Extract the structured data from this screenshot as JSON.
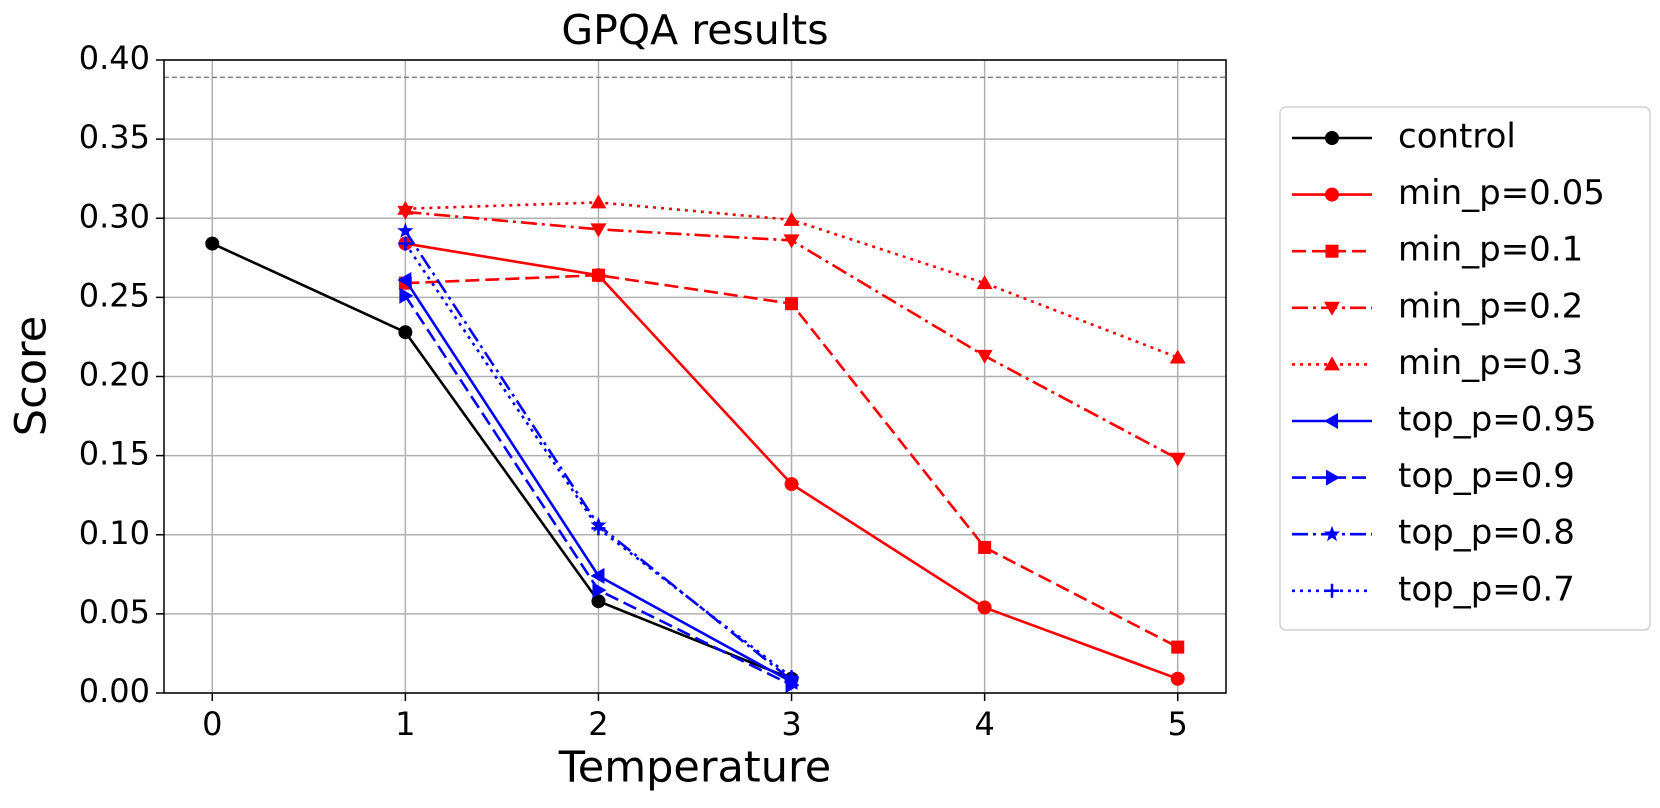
{
  "chart_data": {
    "type": "line",
    "title": "GPQA results",
    "x_label": "Temperature",
    "y_label": "Score",
    "xlim": [
      -0.25,
      5.25
    ],
    "ylim": [
      0,
      0.4
    ],
    "xticks": [
      0,
      1,
      2,
      3,
      4,
      5
    ],
    "yticks": [
      {
        "value": 0,
        "label": "0.00"
      },
      {
        "value": 0.05,
        "label": "0.05"
      },
      {
        "value": 0.1,
        "label": "0.10"
      },
      {
        "value": 0.15,
        "label": "0.15"
      },
      {
        "value": 0.2,
        "label": "0.20"
      },
      {
        "value": 0.25,
        "label": "0.25"
      },
      {
        "value": 0.3,
        "label": "0.30"
      },
      {
        "value": 0.35,
        "label": "0.35"
      },
      {
        "value": 0.4,
        "label": "0.40"
      }
    ],
    "grid": true,
    "legend": "outside-right",
    "reference_line": {
      "y": 0.389,
      "color": "#808080"
    },
    "series": [
      {
        "name": "control",
        "color": "#000000",
        "marker": "circle",
        "linestyle": "solid",
        "x": [
          0,
          1,
          2,
          3
        ],
        "values": [
          0.284,
          0.228,
          0.058,
          0.009
        ]
      },
      {
        "name": "min_p=0.05",
        "color": "#ff0000",
        "marker": "circle",
        "linestyle": "solid",
        "x": [
          1,
          2,
          3,
          4,
          5
        ],
        "values": [
          0.284,
          0.264,
          0.132,
          0.054,
          0.009
        ]
      },
      {
        "name": "min_p=0.1",
        "color": "#ff0000",
        "marker": "square",
        "linestyle": "dashed",
        "x": [
          1,
          2,
          3,
          4,
          5
        ],
        "values": [
          0.259,
          0.264,
          0.246,
          0.092,
          0.029
        ]
      },
      {
        "name": "min_p=0.2",
        "color": "#ff0000",
        "marker": "triangle-down",
        "linestyle": "dashdot",
        "x": [
          1,
          2,
          3,
          4,
          5
        ],
        "values": [
          0.304,
          0.293,
          0.286,
          0.213,
          0.148
        ]
      },
      {
        "name": "min_p=0.3",
        "color": "#ff0000",
        "marker": "triangle-up",
        "linestyle": "dotted",
        "x": [
          1,
          2,
          3,
          4,
          5
        ],
        "values": [
          0.306,
          0.31,
          0.299,
          0.259,
          0.212
        ]
      },
      {
        "name": "top_p=0.95",
        "color": "#0000ff",
        "marker": "triangle-left",
        "linestyle": "solid",
        "x": [
          1,
          2,
          3
        ],
        "values": [
          0.261,
          0.074,
          0.007
        ]
      },
      {
        "name": "top_p=0.9",
        "color": "#0000ff",
        "marker": "triangle-right",
        "linestyle": "dashed",
        "x": [
          1,
          2,
          3
        ],
        "values": [
          0.251,
          0.065,
          0.005
        ]
      },
      {
        "name": "top_p=0.8",
        "color": "#0000ff",
        "marker": "star",
        "linestyle": "dashdot",
        "x": [
          1,
          2,
          3
        ],
        "values": [
          0.292,
          0.106,
          0.008
        ]
      },
      {
        "name": "top_p=0.7",
        "color": "#0000ff",
        "marker": "plus",
        "linestyle": "dotted",
        "x": [
          1,
          2,
          3
        ],
        "values": [
          0.284,
          0.104,
          0.01
        ]
      }
    ]
  }
}
